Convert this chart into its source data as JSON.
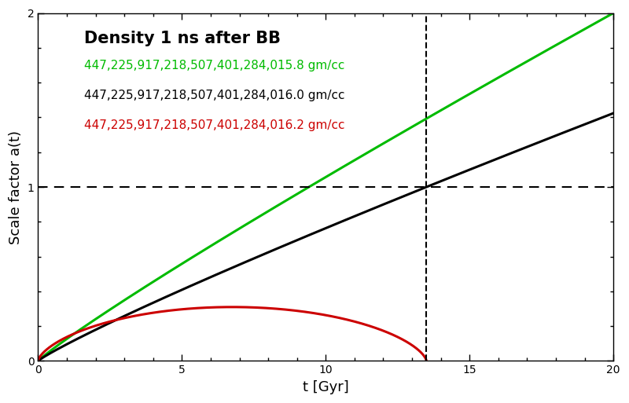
{
  "title_line1": "Density 1 ns after BB",
  "legend_green": "447,225,917,218,507,401,284,015.8 gm/cc",
  "legend_black": "447,225,917,218,507,401,284,016.0 gm/cc",
  "legend_red": "447,225,917,218,507,401,284,016.2 gm/cc",
  "color_green": "#00bb00",
  "color_black": "#000000",
  "color_red": "#cc0000",
  "dashed_color": "#000000",
  "vline_x": 13.5,
  "hline_y": 1.0,
  "xlim": [
    0,
    20
  ],
  "ylim": [
    0,
    2
  ],
  "xlabel": "t [Gyr]",
  "ylabel": "Scale factor a(t)",
  "xticks": [
    0,
    5,
    10,
    15,
    20
  ],
  "yticks": [
    0,
    1,
    2
  ],
  "background_color": "#ffffff",
  "title_fontsize": 15,
  "legend_fontsize": 11,
  "axis_fontsize": 13,
  "alpha_open": 0.9,
  "alpha_flat": 1.0,
  "t_now": 13.5,
  "cycloid_B_factor": 13.5,
  "cycloid_A": 0.155
}
